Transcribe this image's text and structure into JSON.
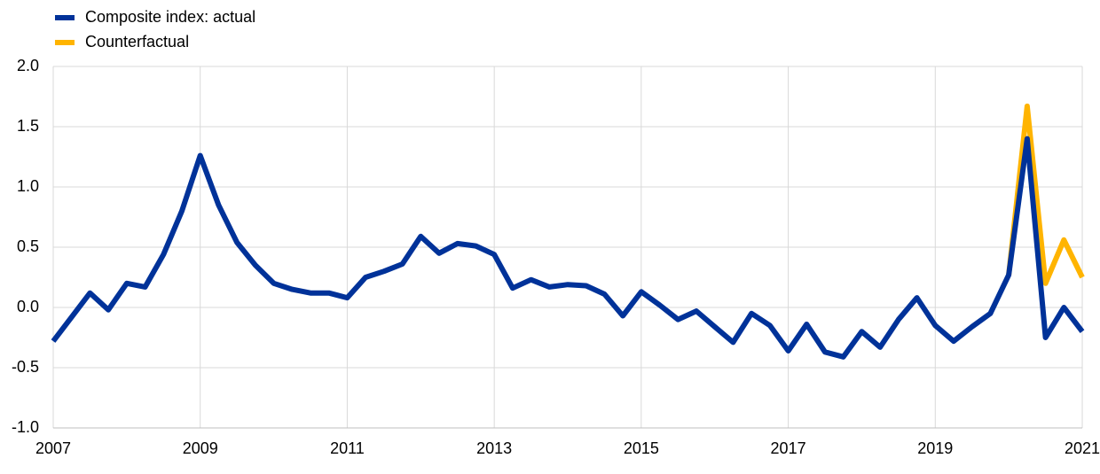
{
  "chart_data": {
    "type": "line",
    "x": [
      2007,
      2007.25,
      2007.5,
      2007.75,
      2008,
      2008.25,
      2008.5,
      2008.75,
      2009,
      2009.25,
      2009.5,
      2009.75,
      2010,
      2010.25,
      2010.5,
      2010.75,
      2011,
      2011.25,
      2011.5,
      2011.75,
      2012,
      2012.25,
      2012.5,
      2012.75,
      2013,
      2013.25,
      2013.5,
      2013.75,
      2014,
      2014.25,
      2014.5,
      2014.75,
      2015,
      2015.25,
      2015.5,
      2015.75,
      2016,
      2016.25,
      2016.5,
      2016.75,
      2017,
      2017.25,
      2017.5,
      2017.75,
      2018,
      2018.25,
      2018.5,
      2018.75,
      2019,
      2019.25,
      2019.5,
      2019.75,
      2020,
      2020.25,
      2020.5,
      2020.75,
      2021
    ],
    "series": [
      {
        "name": "Composite index: actual",
        "color": "#003299",
        "values": [
          -0.28,
          -0.08,
          0.12,
          -0.02,
          0.2,
          0.17,
          0.44,
          0.8,
          1.26,
          0.85,
          0.54,
          0.35,
          0.2,
          0.15,
          0.12,
          0.12,
          0.08,
          0.25,
          0.3,
          0.36,
          0.59,
          0.45,
          0.53,
          0.51,
          0.44,
          0.16,
          0.23,
          0.17,
          0.19,
          0.18,
          0.11,
          -0.07,
          0.13,
          0.02,
          -0.1,
          -0.03,
          -0.16,
          -0.29,
          -0.05,
          -0.15,
          -0.36,
          -0.14,
          -0.37,
          -0.41,
          -0.2,
          -0.33,
          -0.1,
          0.08,
          -0.15,
          -0.28,
          -0.16,
          -0.05,
          0.27,
          1.4,
          -0.25,
          0.0,
          -0.2
        ]
      },
      {
        "name": "Counterfactual",
        "color": "#FFB400",
        "values": [
          null,
          null,
          null,
          null,
          null,
          null,
          null,
          null,
          null,
          null,
          null,
          null,
          null,
          null,
          null,
          null,
          null,
          null,
          null,
          null,
          null,
          null,
          null,
          null,
          null,
          null,
          null,
          null,
          null,
          null,
          null,
          null,
          null,
          null,
          null,
          null,
          null,
          null,
          null,
          null,
          null,
          null,
          null,
          null,
          null,
          null,
          null,
          null,
          null,
          null,
          null,
          null,
          0.27,
          1.67,
          0.2,
          0.56,
          0.25
        ]
      }
    ],
    "xlim": [
      2007,
      2021
    ],
    "xticks": [
      2007,
      2009,
      2011,
      2013,
      2015,
      2017,
      2019,
      2021
    ],
    "ylim": [
      -1.0,
      2.0
    ],
    "yticks": [
      {
        "value": -1.0,
        "label": "-1.0"
      },
      {
        "value": -0.5,
        "label": "-0.5"
      },
      {
        "value": 0.0,
        "label": "0.0"
      },
      {
        "value": 0.5,
        "label": "0.5"
      },
      {
        "value": 1.0,
        "label": "1.0"
      },
      {
        "value": 1.5,
        "label": "1.5"
      },
      {
        "value": 2.0,
        "label": "2.0"
      }
    ],
    "grid": true
  }
}
